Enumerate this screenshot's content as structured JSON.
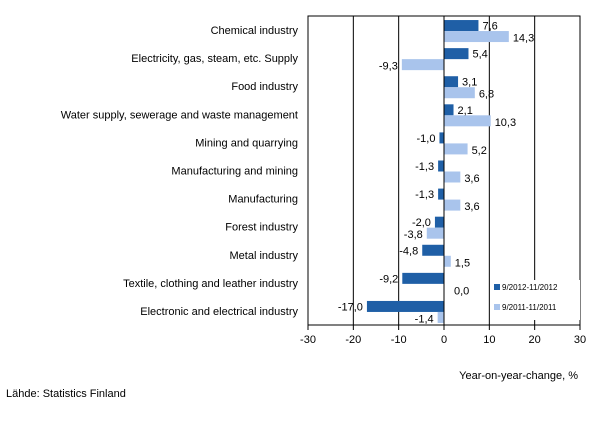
{
  "chart_data": {
    "type": "bar",
    "orientation": "horizontal",
    "categories": [
      "Chemical industry",
      "Electricity, gas, steam, etc. Supply",
      "Food industry",
      "Water supply, sewerage and waste management",
      "Mining and quarrying",
      "Manufacturing and mining",
      "Manufacturing",
      "Forest industry",
      "Metal industry",
      "Textile, clothing and leather industry",
      "Electronic and electrical industry"
    ],
    "series": [
      {
        "name": "9/2012-11/2012",
        "color": "#1f5fa6",
        "values": [
          7.6,
          5.4,
          3.1,
          2.1,
          -1.0,
          -1.3,
          -1.3,
          -2.0,
          -4.8,
          -9.2,
          -17.0
        ],
        "labels": [
          "7,6",
          "5,4",
          "3,1",
          "2,1",
          "-1,0",
          "-1,3",
          "-1,3",
          "-2,0",
          "-4,8",
          "-9,2",
          "-17,0"
        ]
      },
      {
        "name": "9/2011-11/2011",
        "color": "#a9c4ec",
        "values": [
          14.3,
          -9.3,
          6.8,
          10.3,
          5.2,
          3.6,
          3.6,
          -3.8,
          1.5,
          0.0,
          -1.4
        ],
        "labels": [
          "14,3",
          "-9,3",
          "6,8",
          "10,3",
          "5,2",
          "3,6",
          "3,6",
          "-3,8",
          "1,5",
          "0,0",
          "-1,4"
        ]
      }
    ],
    "xlabel": "Year-on-year-change, %",
    "xlim": [
      -30,
      30
    ],
    "xticks": [
      -30,
      -20,
      -10,
      0,
      10,
      20,
      30
    ],
    "grid": "vertical",
    "legend_position": "bottom-right-inside"
  },
  "source": "Lähde: Statistics Finland"
}
